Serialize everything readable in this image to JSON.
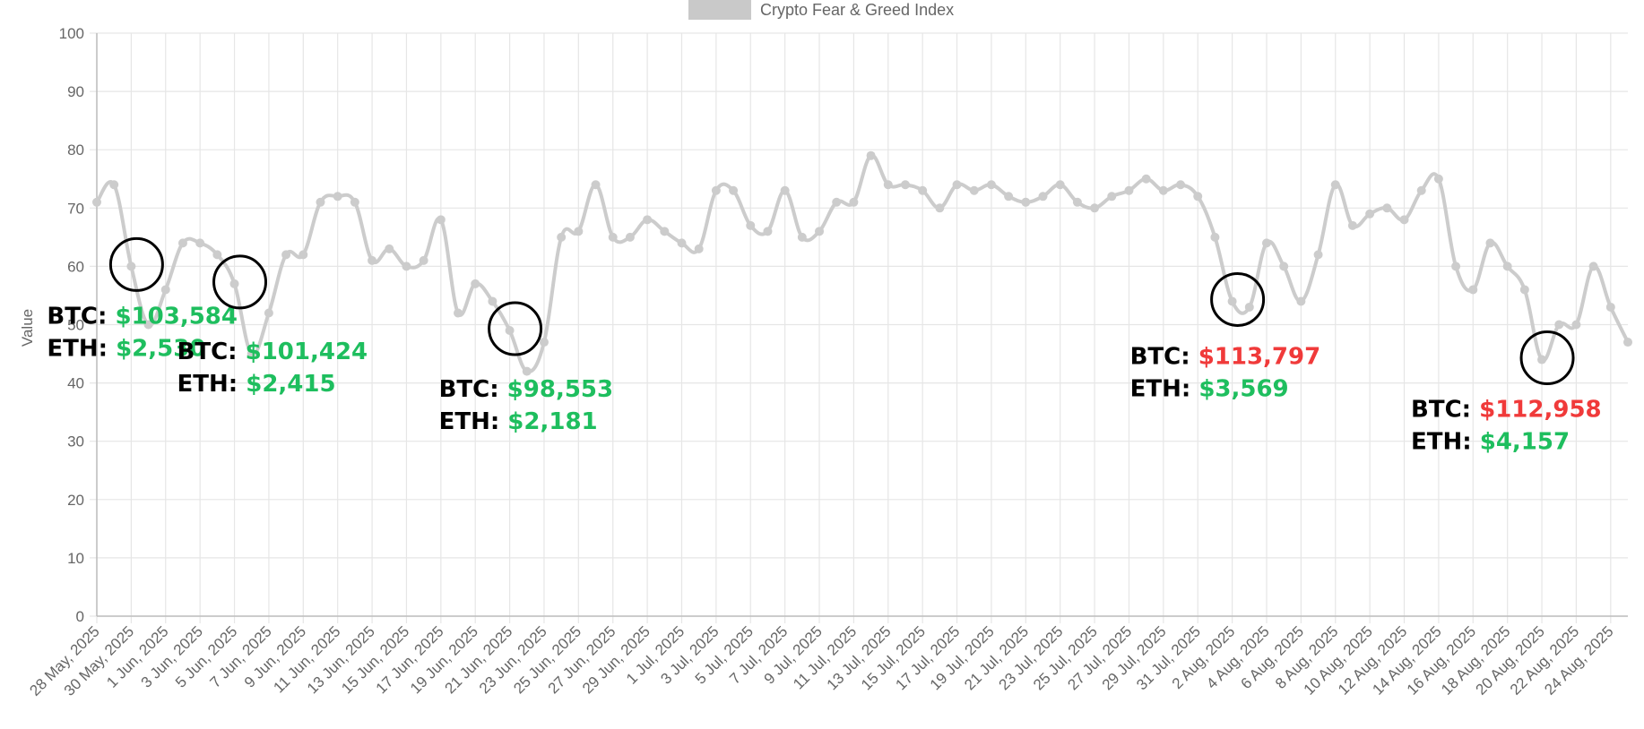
{
  "chart_data": {
    "type": "line",
    "legend": {
      "label": "Crypto Fear & Greed Index",
      "position": "top",
      "color": "#c9c9c9"
    },
    "ylabel": "Value",
    "ylim": [
      0,
      100
    ],
    "yticks": [
      0,
      10,
      20,
      30,
      40,
      50,
      60,
      70,
      80,
      90,
      100
    ],
    "grid": true,
    "line_color": "#cccccc",
    "x_dates": [
      "28 May, 2025",
      "29 May, 2025",
      "30 May, 2025",
      "31 May, 2025",
      "1 Jun, 2025",
      "2 Jun, 2025",
      "3 Jun, 2025",
      "4 Jun, 2025",
      "5 Jun, 2025",
      "6 Jun, 2025",
      "7 Jun, 2025",
      "8 Jun, 2025",
      "9 Jun, 2025",
      "10 Jun, 2025",
      "11 Jun, 2025",
      "12 Jun, 2025",
      "13 Jun, 2025",
      "14 Jun, 2025",
      "15 Jun, 2025",
      "16 Jun, 2025",
      "17 Jun, 2025",
      "18 Jun, 2025",
      "19 Jun, 2025",
      "20 Jun, 2025",
      "21 Jun, 2025",
      "22 Jun, 2025",
      "23 Jun, 2025",
      "24 Jun, 2025",
      "25 Jun, 2025",
      "26 Jun, 2025",
      "27 Jun, 2025",
      "28 Jun, 2025",
      "29 Jun, 2025",
      "30 Jun, 2025",
      "1 Jul, 2025",
      "2 Jul, 2025",
      "3 Jul, 2025",
      "4 Jul, 2025",
      "5 Jul, 2025",
      "6 Jul, 2025",
      "7 Jul, 2025",
      "8 Jul, 2025",
      "9 Jul, 2025",
      "10 Jul, 2025",
      "11 Jul, 2025",
      "12 Jul, 2025",
      "13 Jul, 2025",
      "14 Jul, 2025",
      "15 Jul, 2025",
      "16 Jul, 2025",
      "17 Jul, 2025",
      "18 Jul, 2025",
      "19 Jul, 2025",
      "20 Jul, 2025",
      "21 Jul, 2025",
      "22 Jul, 2025",
      "23 Jul, 2025",
      "24 Jul, 2025",
      "25 Jul, 2025",
      "26 Jul, 2025",
      "27 Jul, 2025",
      "28 Jul, 2025",
      "29 Jul, 2025",
      "30 Jul, 2025",
      "31 Jul, 2025",
      "1 Aug, 2025",
      "2 Aug, 2025",
      "3 Aug, 2025",
      "4 Aug, 2025",
      "5 Aug, 2025",
      "6 Aug, 2025",
      "7 Aug, 2025",
      "8 Aug, 2025",
      "9 Aug, 2025",
      "10 Aug, 2025",
      "11 Aug, 2025",
      "12 Aug, 2025",
      "13 Aug, 2025",
      "14 Aug, 2025",
      "15 Aug, 2025",
      "16 Aug, 2025",
      "17 Aug, 2025",
      "18 Aug, 2025",
      "19 Aug, 2025",
      "20 Aug, 2025",
      "21 Aug, 2025",
      "22 Aug, 2025",
      "23 Aug, 2025",
      "24 Aug, 2025",
      "25 Aug, 2025"
    ],
    "x_tick_labels": [
      "28 May, 2025",
      "30 May, 2025",
      "1 Jun, 2025",
      "3 Jun, 2025",
      "5 Jun, 2025",
      "7 Jun, 2025",
      "9 Jun, 2025",
      "11 Jun, 2025",
      "13 Jun, 2025",
      "15 Jun, 2025",
      "17 Jun, 2025",
      "19 Jun, 2025",
      "21 Jun, 2025",
      "23 Jun, 2025",
      "25 Jun, 2025",
      "27 Jun, 2025",
      "29 Jun, 2025",
      "1 Jul, 2025",
      "3 Jul, 2025",
      "5 Jul, 2025",
      "7 Jul, 2025",
      "9 Jul, 2025",
      "11 Jul, 2025",
      "13 Jul, 2025",
      "15 Jul, 2025",
      "17 Jul, 2025",
      "19 Jul, 2025",
      "21 Jul, 2025",
      "23 Jul, 2025",
      "25 Jul, 2025",
      "27 Jul, 2025",
      "29 Jul, 2025",
      "31 Jul, 2025",
      "2 Aug, 2025",
      "4 Aug, 2025",
      "6 Aug, 2025",
      "8 Aug, 2025",
      "10 Aug, 2025",
      "12 Aug, 2025",
      "14 Aug, 2025",
      "16 Aug, 2025",
      "18 Aug, 2025",
      "20 Aug, 2025",
      "22 Aug, 2025",
      "24 Aug, 2025"
    ],
    "series": [
      {
        "name": "Crypto Fear & Greed Index",
        "values": [
          71,
          74,
          60,
          50,
          56,
          64,
          64,
          62,
          57,
          45,
          52,
          62,
          62,
          71,
          72,
          71,
          61,
          63,
          60,
          61,
          68,
          52,
          57,
          54,
          49,
          42,
          47,
          65,
          66,
          74,
          65,
          65,
          68,
          66,
          64,
          63,
          73,
          73,
          67,
          66,
          73,
          65,
          66,
          71,
          71,
          79,
          74,
          74,
          73,
          70,
          74,
          73,
          74,
          72,
          71,
          72,
          74,
          71,
          70,
          72,
          73,
          75,
          73,
          74,
          72,
          65,
          54,
          53,
          64,
          60,
          54,
          62,
          74,
          67,
          69,
          70,
          68,
          73,
          75,
          60,
          56,
          64,
          60,
          56,
          44,
          50,
          50,
          60,
          53,
          47
        ]
      }
    ],
    "annotations": [
      {
        "date": "30 May, 2025",
        "btc_label": "BTC:",
        "btc_value": "$103,584",
        "btc_color": "#1ebe5e",
        "eth_label": "ETH:",
        "eth_value": "$2,530",
        "eth_color": "#1ebe5e"
      },
      {
        "date": "5 Jun, 2025",
        "btc_label": "BTC:",
        "btc_value": "$101,424",
        "btc_color": "#1ebe5e",
        "eth_label": "ETH:",
        "eth_value": "$2,415",
        "eth_color": "#1ebe5e"
      },
      {
        "date": "21 Jun, 2025",
        "btc_label": "BTC:",
        "btc_value": "$98,553",
        "btc_color": "#1ebe5e",
        "eth_label": "ETH:",
        "eth_value": "$2,181",
        "eth_color": "#1ebe5e"
      },
      {
        "date": "2 Aug, 2025",
        "btc_label": "BTC:",
        "btc_value": "$113,797",
        "btc_color": "#f03a3a",
        "eth_label": "ETH:",
        "eth_value": "$3,569",
        "eth_color": "#1ebe5e"
      },
      {
        "date": "20 Aug, 2025",
        "btc_label": "BTC:",
        "btc_value": "$112,958",
        "btc_color": "#f03a3a",
        "eth_label": "ETH:",
        "eth_value": "$4,157",
        "eth_color": "#1ebe5e"
      }
    ]
  }
}
